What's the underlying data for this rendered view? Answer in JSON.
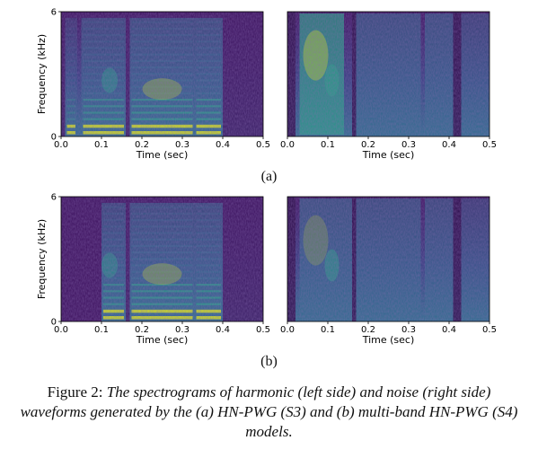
{
  "subfigures": [
    {
      "label": "(a)",
      "panels": [
        {
          "side": "left",
          "ylabel": "Frequency (kHz)",
          "yticks": [
            "6",
            "0"
          ],
          "xlabel": "Time (sec)",
          "xticks": [
            "0.0",
            "0.1",
            "0.2",
            "0.3",
            "0.4",
            "0.5"
          ]
        },
        {
          "side": "right",
          "xlabel": "Time (sec)",
          "xticks": [
            "0.0",
            "0.1",
            "0.2",
            "0.3",
            "0.4",
            "0.5"
          ]
        }
      ]
    },
    {
      "label": "(b)",
      "panels": [
        {
          "side": "left",
          "ylabel": "Frequency (kHz)",
          "yticks": [
            "6",
            "0"
          ],
          "xlabel": "Time (sec)",
          "xticks": [
            "0.0",
            "0.1",
            "0.2",
            "0.3",
            "0.4",
            "0.5"
          ]
        },
        {
          "side": "right",
          "xlabel": "Time (sec)",
          "xticks": [
            "0.0",
            "0.1",
            "0.2",
            "0.3",
            "0.4",
            "0.5"
          ]
        }
      ]
    }
  ],
  "caption": {
    "label": "Figure 2:",
    "text": "The spectrograms of harmonic (left side) and noise (right side) waveforms generated by the (a) HN-PWG (S3) and (b) multi-band HN-PWG (S4) models."
  },
  "colors": {
    "background": "#3b0f5c",
    "mid": "#2f6d8e",
    "teal": "#22a884",
    "bright": "#cde11d",
    "dark": "#2a0a47"
  }
}
